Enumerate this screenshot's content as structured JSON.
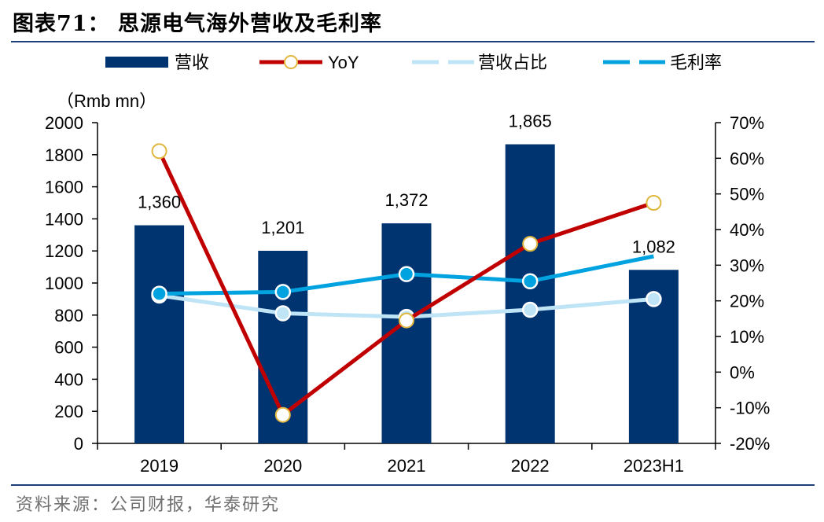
{
  "page": {
    "title": "图表71： 思源电气海外营收及毛利率",
    "source": "资料来源：公司财报，华泰研究"
  },
  "colors": {
    "bar": "#003471",
    "yoy": "#c00000",
    "yoy_marker_edge": "#e0b840",
    "share": "#bfe4f6",
    "margin": "#00a3e0",
    "rule": "#1f3f78"
  },
  "chart_data": {
    "type": "bar",
    "title": "思源电气海外营收及毛利率",
    "categories": [
      "2019",
      "2020",
      "2021",
      "2022",
      "2023H1"
    ],
    "ylabel": "（Rmb mn）",
    "ylim": [
      0,
      2000
    ],
    "yticks": [
      "0",
      "200",
      "400",
      "600",
      "800",
      "1000",
      "1200",
      "1400",
      "1600",
      "1800",
      "2000"
    ],
    "y2lim": [
      -20,
      70
    ],
    "y2ticks": [
      "-20%",
      "-10%",
      "0%",
      "10%",
      "20%",
      "30%",
      "40%",
      "50%",
      "60%",
      "70%"
    ],
    "legend_position": "top",
    "series": [
      {
        "name": "营收",
        "kind": "bar",
        "axis": "left",
        "values": [
          1360,
          1201,
          1372,
          1865,
          1082
        ],
        "labels": [
          "1,360",
          "1,201",
          "1,372",
          "1,865",
          "1,082"
        ]
      },
      {
        "name": "YoY",
        "kind": "line",
        "axis": "right",
        "values": [
          62,
          -12,
          14.5,
          36,
          47.5
        ]
      },
      {
        "name": "营收占比",
        "kind": "line",
        "axis": "right",
        "values": [
          21.5,
          16.5,
          15.5,
          17.5,
          20.5
        ]
      },
      {
        "name": "毛利率",
        "kind": "line",
        "axis": "right",
        "values": [
          22,
          22.5,
          27.5,
          25.5,
          32.5
        ]
      }
    ]
  }
}
